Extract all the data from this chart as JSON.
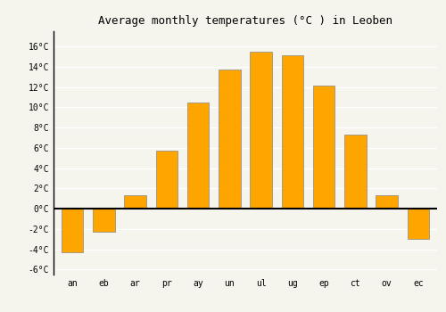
{
  "title": "Average monthly temperatures (°C ) in Leoben",
  "month_labels": [
    "an",
    "eb",
    "ar",
    "pr",
    "ay",
    "un",
    "ul",
    "ug",
    "ep",
    "ct",
    "ov",
    "ec"
  ],
  "values": [
    -4.3,
    -2.3,
    1.3,
    5.7,
    10.5,
    13.7,
    15.5,
    15.1,
    12.1,
    7.3,
    1.3,
    -3.0
  ],
  "bar_color": "#FFA500",
  "bar_edge_color": "#888888",
  "ylim": [
    -6.5,
    17.5
  ],
  "yticks": [
    -6,
    -4,
    -2,
    0,
    2,
    4,
    6,
    8,
    10,
    12,
    14,
    16
  ],
  "ytick_labels": [
    "-6°C",
    "-4°C",
    "-2°C",
    "0°C",
    "2°C",
    "4°C",
    "6°C",
    "8°C",
    "10°C",
    "12°C",
    "14°C",
    "16°C"
  ],
  "background_color": "#f5f5ee",
  "grid_color": "#ffffff",
  "title_fontsize": 9,
  "tick_fontsize": 7,
  "bar_width": 0.7
}
